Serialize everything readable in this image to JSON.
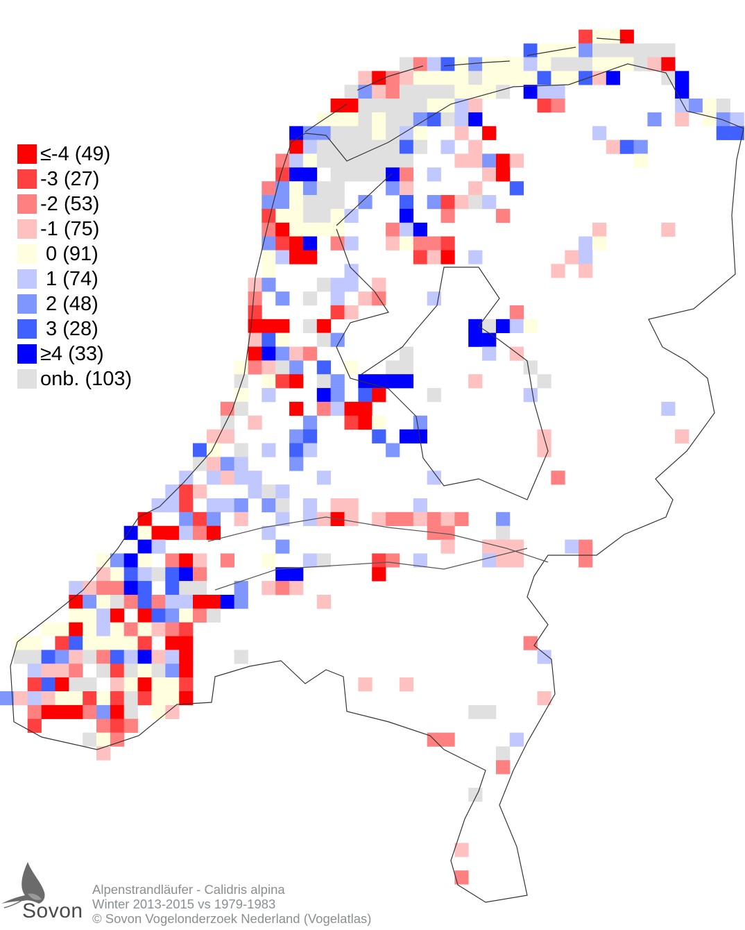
{
  "legend": {
    "items": [
      {
        "label": "≤-4 (49)",
        "color": "#ff0000"
      },
      {
        "label": "-3 (27)",
        "color": "#ff4040"
      },
      {
        "label": "-2 (53)",
        "color": "#ff8080"
      },
      {
        "label": "-1 (75)",
        "color": "#ffc0c0"
      },
      {
        "label": " 0 (91)",
        "color": "#ffffe0"
      },
      {
        "label": " 1 (74)",
        "color": "#c0c8ff"
      },
      {
        "label": " 2 (48)",
        "color": "#8096ff"
      },
      {
        "label": " 3 (28)",
        "color": "#4060ff"
      },
      {
        "label": "≥4 (33)",
        "color": "#0000ff"
      },
      {
        "label": "onb. (103)",
        "color": "#e0e0e0"
      }
    ]
  },
  "caption": {
    "species": "Alpenstrandläufer - Calidris alpina",
    "period": "Winter 2013-2015 vs 1979-1983",
    "copyright": "© Sovon Vogelonderzoek Nederland (Vogelatlas)"
  },
  "logo": {
    "text": "Sovon"
  }
}
